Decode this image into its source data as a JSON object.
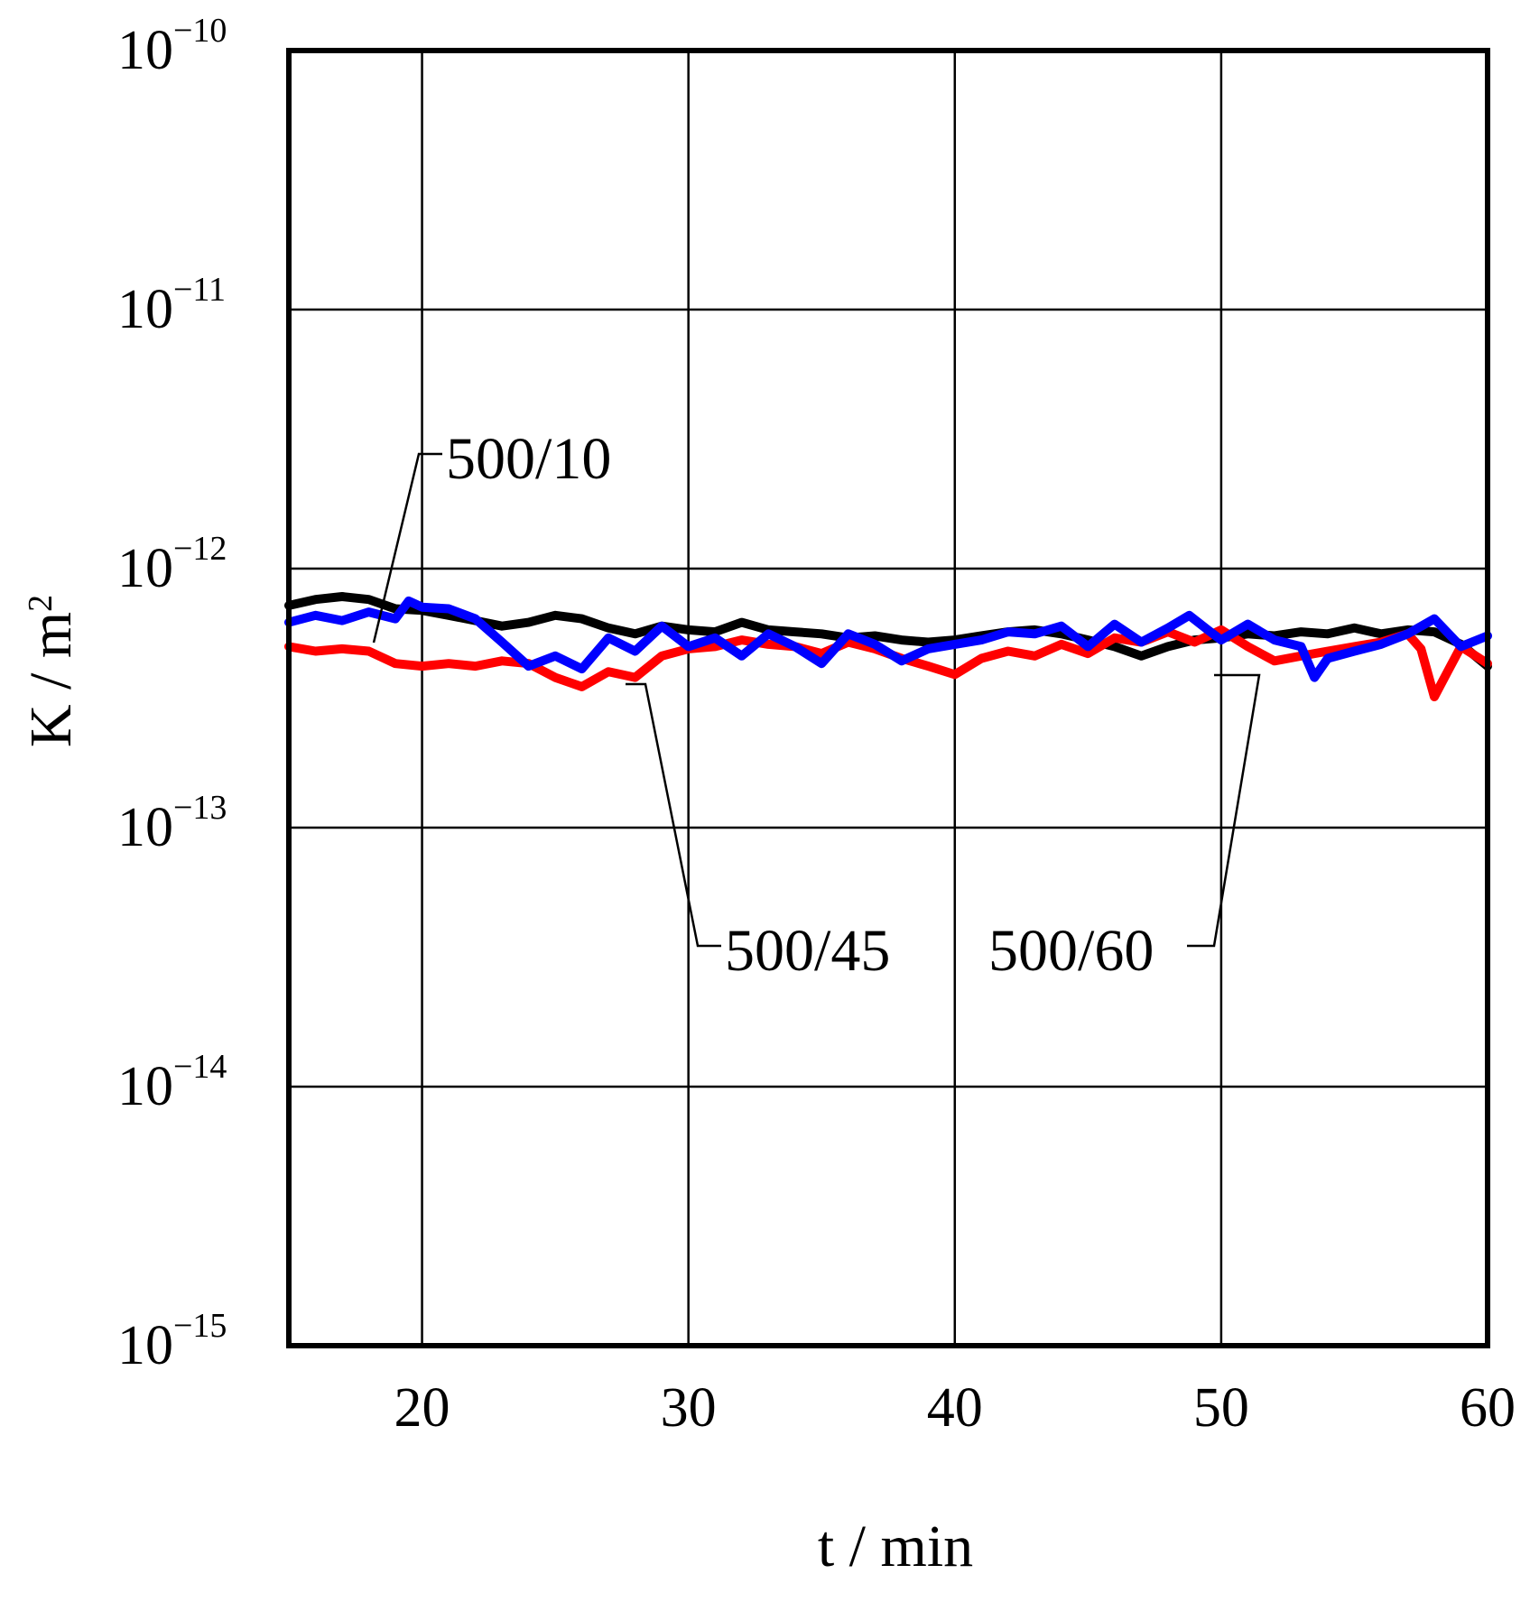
{
  "chart_data": {
    "type": "line",
    "xlabel": "t / min",
    "ylabel_base": "K / m",
    "ylabel_sup": "2",
    "xlim": [
      15,
      60
    ],
    "ylim": [
      1e-15,
      1e-10
    ],
    "yscale": "log",
    "grid": true,
    "x_ticks": [
      20,
      30,
      40,
      50,
      60
    ],
    "x_tick_labels": [
      "20",
      "30",
      "40",
      "50",
      "60"
    ],
    "y_ticks": [
      {
        "value": 1e-10,
        "base": "10",
        "exp": "−10"
      },
      {
        "value": 1e-11,
        "base": "10",
        "exp": "−11"
      },
      {
        "value": 1e-12,
        "base": "10",
        "exp": "−12"
      },
      {
        "value": 1e-13,
        "base": "10",
        "exp": "−13"
      },
      {
        "value": 1e-14,
        "base": "10",
        "exp": "−14"
      },
      {
        "value": 1e-15,
        "base": "10",
        "exp": "−15"
      }
    ],
    "series": [
      {
        "name": "500/10",
        "color": "#000000",
        "x": [
          15,
          16,
          17,
          18,
          19,
          20,
          21,
          22,
          23,
          24,
          25,
          26,
          27,
          28,
          29,
          30,
          31,
          32,
          33,
          34,
          35,
          36,
          37,
          38,
          39,
          40,
          41,
          42,
          43,
          44,
          45,
          46,
          47,
          48,
          49,
          50,
          51,
          52,
          53,
          54,
          55,
          56,
          57,
          58,
          59,
          60
        ],
        "y": [
          7.2e-13,
          7.6e-13,
          7.8e-13,
          7.6e-13,
          7e-13,
          6.9e-13,
          6.6e-13,
          6.3e-13,
          6e-13,
          6.2e-13,
          6.6e-13,
          6.4e-13,
          5.9e-13,
          5.6e-13,
          6e-13,
          5.8e-13,
          5.7e-13,
          6.2e-13,
          5.8e-13,
          5.7e-13,
          5.6e-13,
          5.4e-13,
          5.5e-13,
          5.3e-13,
          5.2e-13,
          5.3e-13,
          5.5e-13,
          5.7e-13,
          5.8e-13,
          5.6e-13,
          5.3e-13,
          5e-13,
          4.6e-13,
          5e-13,
          5.3e-13,
          5.4e-13,
          5.6e-13,
          5.5e-13,
          5.7e-13,
          5.6e-13,
          5.9e-13,
          5.6e-13,
          5.8e-13,
          5.7e-13,
          5.1e-13,
          4.2e-13
        ]
      },
      {
        "name": "500/45",
        "color": "#ff0000",
        "x": [
          15,
          16,
          17,
          18,
          19,
          20,
          21,
          22,
          23,
          24,
          25,
          26,
          27,
          28,
          29,
          30,
          31,
          32,
          33,
          34,
          35,
          36,
          37,
          38,
          39,
          40,
          41,
          42,
          43,
          44,
          45,
          46,
          47,
          48,
          49,
          50,
          51,
          52,
          53,
          54,
          55,
          56,
          57,
          57.5,
          58,
          58.5,
          59,
          60
        ],
        "y": [
          5e-13,
          4.8e-13,
          4.9e-13,
          4.8e-13,
          4.3e-13,
          4.2e-13,
          4.3e-13,
          4.2e-13,
          4.4e-13,
          4.3e-13,
          3.8e-13,
          3.5e-13,
          4e-13,
          3.8e-13,
          4.6e-13,
          4.9e-13,
          5e-13,
          5.3e-13,
          5.1e-13,
          5e-13,
          4.7e-13,
          5.2e-13,
          4.9e-13,
          4.5e-13,
          4.2e-13,
          3.9e-13,
          4.5e-13,
          4.8e-13,
          4.6e-13,
          5.1e-13,
          4.7e-13,
          5.4e-13,
          5.2e-13,
          5.7e-13,
          5.2e-13,
          5.8e-13,
          5e-13,
          4.4e-13,
          4.6e-13,
          4.8e-13,
          5e-13,
          5.2e-13,
          5.6e-13,
          4.9e-13,
          3.2e-13,
          4e-13,
          5e-13,
          4.3e-13
        ]
      },
      {
        "name": "500/60",
        "color": "#0000ff",
        "x": [
          15,
          16,
          17,
          18,
          19,
          19.5,
          20,
          21,
          22,
          23,
          24,
          25,
          26,
          27,
          28,
          29,
          30,
          31,
          32,
          33,
          34,
          35,
          36,
          37,
          38,
          39,
          40,
          41,
          42,
          43,
          44,
          45,
          46,
          47,
          48,
          48.8,
          49.5,
          50,
          51,
          52,
          53,
          53.5,
          54,
          55,
          56,
          57,
          58,
          59,
          60
        ],
        "y": [
          6.2e-13,
          6.6e-13,
          6.3e-13,
          6.8e-13,
          6.4e-13,
          7.5e-13,
          7.1e-13,
          7e-13,
          6.4e-13,
          5.2e-13,
          4.2e-13,
          4.6e-13,
          4.1e-13,
          5.4e-13,
          4.8e-13,
          6e-13,
          5e-13,
          5.4e-13,
          4.6e-13,
          5.6e-13,
          5e-13,
          4.3e-13,
          5.6e-13,
          5.1e-13,
          4.4e-13,
          4.9e-13,
          5.1e-13,
          5.3e-13,
          5.7e-13,
          5.6e-13,
          6e-13,
          5e-13,
          6.1e-13,
          5.2e-13,
          5.9e-13,
          6.6e-13,
          5.8e-13,
          5.3e-13,
          6.1e-13,
          5.3e-13,
          5e-13,
          3.8e-13,
          4.5e-13,
          4.8e-13,
          5.1e-13,
          5.6e-13,
          6.4e-13,
          5e-13,
          5.5e-13
        ]
      }
    ],
    "annotations": [
      {
        "text": "500/10",
        "series": "500/10"
      },
      {
        "text": "500/45",
        "series": "500/45"
      },
      {
        "text": "500/60",
        "series": "500/60"
      }
    ]
  }
}
